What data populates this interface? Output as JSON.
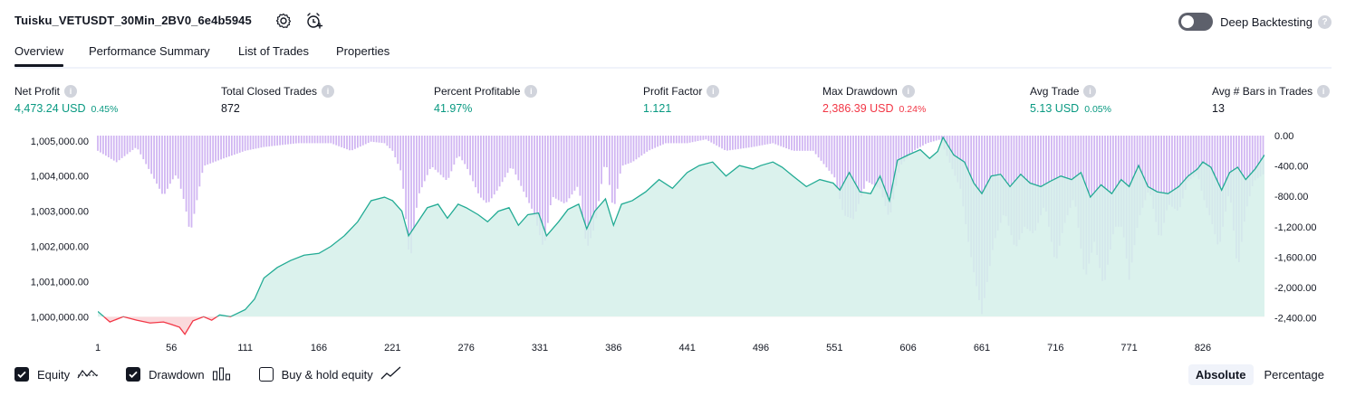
{
  "header": {
    "strategy_name": "Tuisku_VETUSDT_30Min_2BV0_6e4b5945",
    "settings_icon": "gear-icon",
    "alert_icon": "add-alert-icon",
    "deep_backtesting_label": "Deep Backtesting",
    "deep_backtesting_enabled": false,
    "help_icon": "question-mark-icon"
  },
  "tabs": [
    {
      "label": "Overview",
      "active": true
    },
    {
      "label": "Performance Summary",
      "active": false
    },
    {
      "label": "List of Trades",
      "active": false
    },
    {
      "label": "Properties",
      "active": false
    }
  ],
  "metrics": [
    {
      "label": "Net Profit",
      "value": "4,473.24 USD",
      "sub": "0.45%",
      "color": "#089981"
    },
    {
      "label": "Total Closed Trades",
      "value": "872",
      "sub": "",
      "color": "#131722"
    },
    {
      "label": "Percent Profitable",
      "value": "41.97%",
      "sub": "",
      "color": "#089981"
    },
    {
      "label": "Profit Factor",
      "value": "1.121",
      "sub": "",
      "color": "#089981"
    },
    {
      "label": "Max Drawdown",
      "value": "2,386.39 USD",
      "sub": "0.24%",
      "color": "#f23645"
    },
    {
      "label": "Avg Trade",
      "value": "5.13 USD",
      "sub": "0.05%",
      "color": "#089981"
    },
    {
      "label": "Avg # Bars in Trades",
      "value": "13",
      "sub": "",
      "color": "#131722"
    }
  ],
  "chart_data": {
    "type": "area",
    "x_ticks": [
      "1",
      "56",
      "111",
      "166",
      "221",
      "276",
      "331",
      "386",
      "441",
      "496",
      "551",
      "606",
      "661",
      "716",
      "771",
      "826"
    ],
    "x_range": [
      1,
      872
    ],
    "left_axis_ticks": [
      "1,005,000.00",
      "1,004,000.00",
      "1,003,000.00",
      "1,002,000.00",
      "1,001,000.00",
      "1,000,000.00"
    ],
    "left_axis_range": [
      999750,
      1005150
    ],
    "right_axis_ticks": [
      "0.00",
      "-400.00",
      "-800.00",
      "-1,200.00",
      "-1,600.00",
      "-2,000.00",
      "-2,400.00"
    ],
    "right_axis_range": [
      -2500,
      0
    ],
    "baseline": 1000000,
    "equity_series": {
      "name": "Equity",
      "x": [
        1,
        10,
        20,
        30,
        40,
        50,
        56,
        62,
        66,
        72,
        80,
        86,
        92,
        100,
        111,
        118,
        125,
        135,
        145,
        155,
        166,
        175,
        185,
        195,
        205,
        215,
        221,
        228,
        233,
        240,
        247,
        255,
        262,
        270,
        276,
        285,
        292,
        300,
        308,
        315,
        322,
        330,
        336,
        345,
        352,
        360,
        366,
        372,
        380,
        386,
        392,
        400,
        410,
        420,
        430,
        441,
        450,
        460,
        470,
        480,
        490,
        496,
        505,
        512,
        520,
        530,
        540,
        550,
        555,
        562,
        570,
        578,
        585,
        592,
        598,
        606,
        615,
        622,
        628,
        632,
        640,
        648,
        655,
        661,
        668,
        675,
        682,
        690,
        697,
        705,
        712,
        720,
        728,
        735,
        742,
        750,
        758,
        765,
        771,
        778,
        785,
        792,
        800,
        808,
        815,
        822,
        826,
        832,
        840,
        846,
        852,
        858,
        865,
        872
      ],
      "values": [
        1000150,
        999850,
        1000000,
        999900,
        999820,
        999850,
        999780,
        999700,
        999500,
        999880,
        1000000,
        999900,
        1000050,
        1000000,
        1000200,
        1000500,
        1001100,
        1001400,
        1001600,
        1001750,
        1001800,
        1002000,
        1002300,
        1002700,
        1003300,
        1003400,
        1003300,
        1003000,
        1002300,
        1002700,
        1003100,
        1003200,
        1002800,
        1003200,
        1003100,
        1002900,
        1002700,
        1003000,
        1003100,
        1002600,
        1002900,
        1002950,
        1002300,
        1002700,
        1003050,
        1003200,
        1002500,
        1003000,
        1003350,
        1002600,
        1003200,
        1003300,
        1003550,
        1003900,
        1003650,
        1004100,
        1004300,
        1004400,
        1004000,
        1004300,
        1004200,
        1004300,
        1004400,
        1004250,
        1004000,
        1003700,
        1003900,
        1003800,
        1003600,
        1004100,
        1003550,
        1003500,
        1004000,
        1003300,
        1004450,
        1004600,
        1004750,
        1004500,
        1004700,
        1005100,
        1004600,
        1004400,
        1003800,
        1003500,
        1004000,
        1004050,
        1003700,
        1004050,
        1003800,
        1003700,
        1003850,
        1004000,
        1003900,
        1004100,
        1003400,
        1003750,
        1003500,
        1003900,
        1003700,
        1004300,
        1003700,
        1003550,
        1003500,
        1003700,
        1004000,
        1004200,
        1004400,
        1004250,
        1003600,
        1004100,
        1004250,
        1003900,
        1004200,
        1004600
      ]
    },
    "drawdown_series": {
      "name": "Drawdown",
      "x": [
        1,
        15,
        30,
        44,
        50,
        56,
        60,
        66,
        70,
        80,
        95,
        111,
        125,
        150,
        175,
        190,
        205,
        215,
        221,
        228,
        234,
        240,
        250,
        262,
        270,
        276,
        286,
        292,
        300,
        310,
        318,
        326,
        334,
        340,
        350,
        360,
        366,
        372,
        380,
        386,
        392,
        400,
        412,
        425,
        441,
        455,
        470,
        490,
        505,
        520,
        535,
        551,
        558,
        565,
        575,
        585,
        592,
        600,
        610,
        620,
        630,
        638,
        645,
        651,
        655,
        661,
        670,
        678,
        686,
        693,
        700,
        708,
        716,
        722,
        730,
        738,
        745,
        752,
        760,
        766,
        771,
        778,
        786,
        794,
        800,
        808,
        815,
        822,
        826,
        832,
        838,
        846,
        852,
        858,
        864,
        872
      ],
      "values": [
        -200,
        -350,
        -150,
        -600,
        -800,
        -600,
        -500,
        -900,
        -1300,
        -400,
        -300,
        -200,
        -150,
        -100,
        -100,
        -200,
        -80,
        -100,
        -200,
        -500,
        -1700,
        -800,
        -400,
        -600,
        -250,
        -400,
        -800,
        -900,
        -700,
        -400,
        -700,
        -1000,
        -1500,
        -800,
        -900,
        -650,
        -1500,
        -1200,
        -300,
        -1000,
        -400,
        -350,
        -200,
        -100,
        -100,
        -50,
        -200,
        -150,
        -100,
        -200,
        -200,
        -550,
        -1050,
        -1100,
        -600,
        -700,
        -1100,
        -400,
        -200,
        -100,
        -50,
        -400,
        -700,
        -1400,
        -1800,
        -2350,
        -1400,
        -1000,
        -1500,
        -1200,
        -1300,
        -900,
        -1700,
        -1200,
        -800,
        -1900,
        -1400,
        -2000,
        -1200,
        -1200,
        -1900,
        -1100,
        -700,
        -1400,
        -900,
        -1000,
        -600,
        -500,
        -800,
        -1100,
        -1500,
        -700,
        -1800,
        -1000,
        -600,
        -500
      ]
    }
  },
  "legend": [
    {
      "label": "Equity",
      "checked": true,
      "icon": "equity-line-icon"
    },
    {
      "label": "Drawdown",
      "checked": true,
      "icon": "drawdown-bars-icon"
    },
    {
      "label": "Buy & hold equity",
      "checked": false,
      "icon": "buy-hold-line-icon"
    }
  ],
  "view_modes": [
    {
      "label": "Absolute",
      "active": true
    },
    {
      "label": "Percentage",
      "active": false
    }
  ],
  "colors": {
    "equity_line": "#22ab94",
    "equity_line_below": "#f23645",
    "equity_fill": "#d5f0ea",
    "drawdown_bars": "#c8a8f0",
    "positive": "#089981",
    "negative": "#f23645",
    "text": "#131722",
    "axis_text": "#131722"
  }
}
